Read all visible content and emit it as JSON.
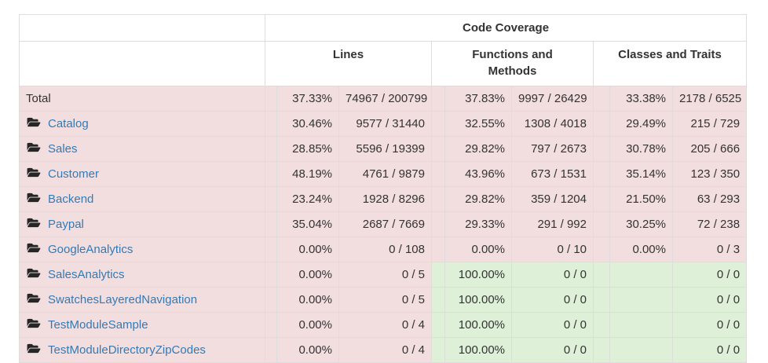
{
  "colors": {
    "danger_bg": "#f2dede",
    "success_bg": "#dff0d8",
    "border": "#dddddd",
    "text": "#333333",
    "link": "#337ab7",
    "icon": "#262626"
  },
  "table": {
    "header": {
      "group_title": "Code Coverage",
      "columns": [
        {
          "label": "Lines"
        },
        {
          "label": "Functions and Methods"
        },
        {
          "label": "Classes and Traits"
        }
      ]
    },
    "rows": [
      {
        "name": "Total",
        "is_link": false,
        "icon": null,
        "lines": {
          "pct": "37.33%",
          "ratio": "74967 / 200799",
          "status": "danger"
        },
        "functions": {
          "pct": "37.83%",
          "ratio": "9997 / 26429",
          "status": "danger"
        },
        "classes": {
          "pct": "33.38%",
          "ratio": "2178 / 6525",
          "status": "danger"
        }
      },
      {
        "name": "Catalog",
        "is_link": true,
        "icon": "folder-open-icon",
        "lines": {
          "pct": "30.46%",
          "ratio": "9577 / 31440",
          "status": "danger"
        },
        "functions": {
          "pct": "32.55%",
          "ratio": "1308 / 4018",
          "status": "danger"
        },
        "classes": {
          "pct": "29.49%",
          "ratio": "215 / 729",
          "status": "danger"
        }
      },
      {
        "name": "Sales",
        "is_link": true,
        "icon": "folder-open-icon",
        "lines": {
          "pct": "28.85%",
          "ratio": "5596 / 19399",
          "status": "danger"
        },
        "functions": {
          "pct": "29.82%",
          "ratio": "797 / 2673",
          "status": "danger"
        },
        "classes": {
          "pct": "30.78%",
          "ratio": "205 / 666",
          "status": "danger"
        }
      },
      {
        "name": "Customer",
        "is_link": true,
        "icon": "folder-open-icon",
        "lines": {
          "pct": "48.19%",
          "ratio": "4761 / 9879",
          "status": "danger"
        },
        "functions": {
          "pct": "43.96%",
          "ratio": "673 / 1531",
          "status": "danger"
        },
        "classes": {
          "pct": "35.14%",
          "ratio": "123 / 350",
          "status": "danger"
        }
      },
      {
        "name": "Backend",
        "is_link": true,
        "icon": "folder-open-icon",
        "lines": {
          "pct": "23.24%",
          "ratio": "1928 / 8296",
          "status": "danger"
        },
        "functions": {
          "pct": "29.82%",
          "ratio": "359 / 1204",
          "status": "danger"
        },
        "classes": {
          "pct": "21.50%",
          "ratio": "63 / 293",
          "status": "danger"
        }
      },
      {
        "name": "Paypal",
        "is_link": true,
        "icon": "folder-open-icon",
        "lines": {
          "pct": "35.04%",
          "ratio": "2687 / 7669",
          "status": "danger"
        },
        "functions": {
          "pct": "29.33%",
          "ratio": "291 / 992",
          "status": "danger"
        },
        "classes": {
          "pct": "30.25%",
          "ratio": "72 / 238",
          "status": "danger"
        }
      },
      {
        "name": "GoogleAnalytics",
        "is_link": true,
        "icon": "folder-open-icon",
        "lines": {
          "pct": "0.00%",
          "ratio": "0 / 108",
          "status": "danger"
        },
        "functions": {
          "pct": "0.00%",
          "ratio": "0 / 10",
          "status": "danger"
        },
        "classes": {
          "pct": "0.00%",
          "ratio": "0 / 3",
          "status": "danger"
        }
      },
      {
        "name": "SalesAnalytics",
        "is_link": true,
        "icon": "folder-open-icon",
        "lines": {
          "pct": "0.00%",
          "ratio": "0 / 5",
          "status": "danger"
        },
        "functions": {
          "pct": "100.00%",
          "ratio": "0 / 0",
          "status": "success"
        },
        "classes": {
          "pct": "",
          "ratio": "0 / 0",
          "status": "success"
        }
      },
      {
        "name": "SwatchesLayeredNavigation",
        "is_link": true,
        "icon": "folder-open-icon",
        "lines": {
          "pct": "0.00%",
          "ratio": "0 / 5",
          "status": "danger"
        },
        "functions": {
          "pct": "100.00%",
          "ratio": "0 / 0",
          "status": "success"
        },
        "classes": {
          "pct": "",
          "ratio": "0 / 0",
          "status": "success"
        }
      },
      {
        "name": "TestModuleSample",
        "is_link": true,
        "icon": "folder-open-icon",
        "lines": {
          "pct": "0.00%",
          "ratio": "0 / 4",
          "status": "danger"
        },
        "functions": {
          "pct": "100.00%",
          "ratio": "0 / 0",
          "status": "success"
        },
        "classes": {
          "pct": "",
          "ratio": "0 / 0",
          "status": "success"
        }
      },
      {
        "name": "TestModuleDirectoryZipCodes",
        "is_link": true,
        "icon": "folder-open-icon",
        "lines": {
          "pct": "0.00%",
          "ratio": "0 / 4",
          "status": "danger"
        },
        "functions": {
          "pct": "100.00%",
          "ratio": "0 / 0",
          "status": "success"
        },
        "classes": {
          "pct": "",
          "ratio": "0 / 0",
          "status": "success"
        }
      }
    ]
  }
}
